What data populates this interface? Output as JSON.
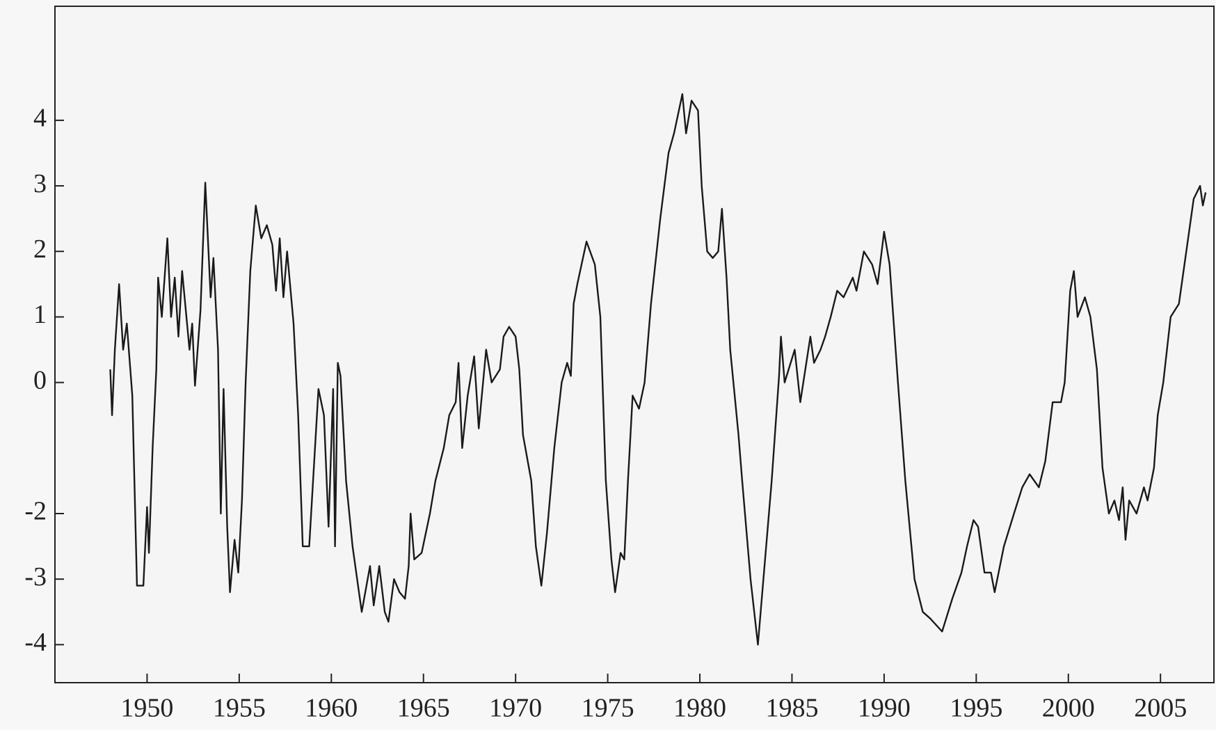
{
  "chart_data": {
    "type": "line",
    "color": "#1a1a1a",
    "x": [
      1948.0,
      1948.1,
      1948.25,
      1948.48,
      1948.7,
      1948.9,
      1949.2,
      1949.45,
      1949.8,
      1950.0,
      1950.1,
      1950.3,
      1950.5,
      1950.6,
      1950.8,
      1951.1,
      1951.3,
      1951.5,
      1951.7,
      1951.9,
      1952.3,
      1952.45,
      1952.6,
      1952.9,
      1953.16,
      1953.45,
      1953.6,
      1953.85,
      1954.0,
      1954.15,
      1954.35,
      1954.5,
      1954.75,
      1954.95,
      1955.15,
      1955.35,
      1955.6,
      1955.9,
      1956.2,
      1956.5,
      1956.8,
      1957.0,
      1957.2,
      1957.4,
      1957.6,
      1957.95,
      1958.2,
      1958.45,
      1958.8,
      1959.3,
      1959.6,
      1959.85,
      1960.1,
      1960.2,
      1960.35,
      1960.5,
      1960.8,
      1961.15,
      1961.5,
      1961.65,
      1962.1,
      1962.3,
      1962.6,
      1962.9,
      1963.1,
      1963.4,
      1963.7,
      1964.0,
      1964.2,
      1964.3,
      1964.5,
      1964.9,
      1965.35,
      1965.65,
      1966.1,
      1966.4,
      1966.75,
      1966.9,
      1967.1,
      1967.4,
      1967.75,
      1968.0,
      1968.4,
      1968.7,
      1969.15,
      1969.35,
      1969.65,
      1970.0,
      1970.2,
      1970.4,
      1970.85,
      1971.1,
      1971.4,
      1971.7,
      1972.1,
      1972.5,
      1972.8,
      1973.0,
      1973.15,
      1973.35,
      1973.85,
      1974.3,
      1974.6,
      1974.9,
      1975.2,
      1975.4,
      1975.7,
      1975.9,
      1976.1,
      1976.35,
      1976.7,
      1977.0,
      1977.35,
      1977.85,
      1978.3,
      1978.6,
      1979.05,
      1979.25,
      1979.55,
      1979.9,
      1980.1,
      1980.4,
      1980.7,
      1981.0,
      1981.2,
      1981.45,
      1981.65,
      1982.1,
      1982.3,
      1982.75,
      1983.15,
      1983.45,
      1983.9,
      1984.3,
      1984.4,
      1984.6,
      1985.15,
      1985.45,
      1986.0,
      1986.2,
      1986.55,
      1986.8,
      1987.1,
      1987.45,
      1987.8,
      1988.3,
      1988.5,
      1988.9,
      1989.35,
      1989.65,
      1990.0,
      1990.3,
      1990.75,
      1991.15,
      1991.65,
      1992.1,
      1992.5,
      1993.15,
      1993.7,
      1994.2,
      1994.5,
      1994.85,
      1995.1,
      1995.45,
      1995.8,
      1996.0,
      1996.5,
      1997.05,
      1997.5,
      1997.9,
      1998.4,
      1998.75,
      1999.15,
      1999.6,
      1999.8,
      2000.1,
      2000.3,
      2000.5,
      2000.9,
      2001.2,
      2001.55,
      2001.85,
      2002.2,
      2002.5,
      2002.75,
      2002.95,
      2003.1,
      2003.3,
      2003.7,
      2004.1,
      2004.3,
      2004.65,
      2004.85,
      2005.15,
      2005.55,
      2006.0,
      2006.4,
      2006.8,
      2007.15,
      2007.3,
      2007.45
    ],
    "values": [
      0.2,
      -0.5,
      0.5,
      1.5,
      0.5,
      0.9,
      -0.2,
      -3.1,
      -3.1,
      -1.9,
      -2.6,
      -1.0,
      0.2,
      1.6,
      1.0,
      2.2,
      1.0,
      1.6,
      0.7,
      1.7,
      0.5,
      0.9,
      -0.05,
      1.1,
      3.05,
      1.3,
      1.9,
      0.5,
      -2.0,
      -0.1,
      -2.2,
      -3.2,
      -2.4,
      -2.9,
      -1.8,
      0.0,
      1.7,
      2.7,
      2.2,
      2.4,
      2.1,
      1.4,
      2.2,
      1.3,
      2.0,
      0.9,
      -0.5,
      -2.5,
      -2.5,
      -0.1,
      -0.5,
      -2.2,
      -0.1,
      -2.5,
      0.3,
      0.1,
      -1.5,
      -2.5,
      -3.2,
      -3.5,
      -2.8,
      -3.4,
      -2.8,
      -3.5,
      -3.65,
      -3.0,
      -3.2,
      -3.3,
      -2.8,
      -2.0,
      -2.7,
      -2.6,
      -2.0,
      -1.5,
      -1.0,
      -0.5,
      -0.3,
      0.3,
      -1.0,
      -0.2,
      0.4,
      -0.7,
      0.5,
      0.0,
      0.2,
      0.7,
      0.85,
      0.7,
      0.2,
      -0.8,
      -1.5,
      -2.5,
      -3.1,
      -2.3,
      -1.0,
      0.0,
      0.3,
      0.1,
      1.2,
      1.5,
      2.15,
      1.8,
      1.0,
      -1.5,
      -2.7,
      -3.2,
      -2.6,
      -2.7,
      -1.5,
      -0.2,
      -0.4,
      0.0,
      1.2,
      2.5,
      3.5,
      3.8,
      4.4,
      3.8,
      4.3,
      4.15,
      3.0,
      2.0,
      1.9,
      2.0,
      2.65,
      1.6,
      0.5,
      -0.8,
      -1.5,
      -3.0,
      -4.0,
      -3.0,
      -1.5,
      0.1,
      0.7,
      0.0,
      0.5,
      -0.3,
      0.7,
      0.3,
      0.5,
      0.7,
      1.0,
      1.4,
      1.3,
      1.6,
      1.4,
      2.0,
      1.8,
      1.5,
      2.3,
      1.8,
      0.0,
      -1.5,
      -3.0,
      -3.5,
      -3.6,
      -3.8,
      -3.3,
      -2.9,
      -2.5,
      -2.1,
      -2.2,
      -2.9,
      -2.9,
      -3.2,
      -2.5,
      -2.0,
      -1.6,
      -1.4,
      -1.6,
      -1.2,
      -0.3,
      -0.3,
      0.0,
      1.4,
      1.7,
      1.0,
      1.3,
      1.0,
      0.2,
      -1.3,
      -2.0,
      -1.8,
      -2.1,
      -1.6,
      -2.4,
      -1.8,
      -2.0,
      -1.6,
      -1.8,
      -1.3,
      -0.5,
      0.0,
      1.0,
      1.2,
      2.0,
      2.8,
      3.0,
      2.7,
      2.9
    ],
    "xlim": [
      1945.0,
      2007.9
    ],
    "xticks": [
      1950,
      1955,
      1960,
      1965,
      1970,
      1975,
      1980,
      1985,
      1990,
      1995,
      2000,
      2005
    ],
    "ylim": [
      -4.58,
      5.74
    ],
    "yticks": [
      -4,
      -3,
      -2,
      0,
      1,
      2,
      3,
      4
    ]
  }
}
